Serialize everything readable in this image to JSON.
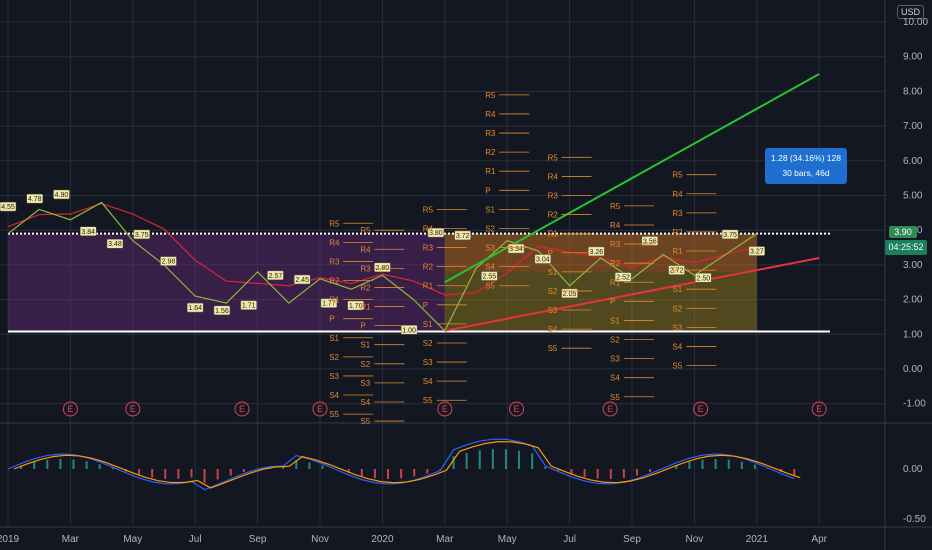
{
  "currency_label": "USD",
  "measure": {
    "line1": "1.28 (34.16%) 128",
    "line2": "30 bars, 46d"
  },
  "price_tag": "3.90",
  "time_tag": "04:25:52",
  "chart_data": {
    "type": "line",
    "main_axis": {
      "ylim": [
        -1.5,
        10.4
      ],
      "ticks": [
        "10.00",
        "9.00",
        "8.00",
        "7.00",
        "6.00",
        "5.00",
        "4.00",
        "3.00",
        "2.00",
        "1.00",
        "0.00",
        "-1.00"
      ]
    },
    "osc_axis": {
      "ticks": [
        "0.00",
        "-0.50"
      ]
    },
    "x_ticks": [
      "2019",
      "Mar",
      "May",
      "Jul",
      "Sep",
      "Nov",
      "2020",
      "Mar",
      "May",
      "Jul",
      "Sep",
      "Nov",
      "2021",
      "Apr"
    ],
    "price_series": [
      {
        "x": "2019-01",
        "y": 3.9
      },
      {
        "x": "2019-02",
        "y": 4.6
      },
      {
        "x": "2019-03",
        "y": 4.3
      },
      {
        "x": "2019-04",
        "y": 4.8
      },
      {
        "x": "2019-05",
        "y": 3.7
      },
      {
        "x": "2019-06",
        "y": 3.0
      },
      {
        "x": "2019-07",
        "y": 2.1
      },
      {
        "x": "2019-08",
        "y": 1.9
      },
      {
        "x": "2019-09",
        "y": 2.8
      },
      {
        "x": "2019-10",
        "y": 1.9
      },
      {
        "x": "2019-11",
        "y": 2.6
      },
      {
        "x": "2019-12",
        "y": 2.3
      },
      {
        "x": "2020-01",
        "y": 2.7
      },
      {
        "x": "2020-02",
        "y": 2.0
      },
      {
        "x": "2020-03",
        "y": 1.1
      },
      {
        "x": "2020-04",
        "y": 2.9
      },
      {
        "x": "2020-05",
        "y": 3.7
      },
      {
        "x": "2020-06",
        "y": 3.4
      },
      {
        "x": "2020-07",
        "y": 2.4
      },
      {
        "x": "2020-08",
        "y": 3.2
      },
      {
        "x": "2020-09",
        "y": 2.6
      },
      {
        "x": "2020-10",
        "y": 3.3
      },
      {
        "x": "2020-11",
        "y": 2.7
      },
      {
        "x": "2020-12",
        "y": 3.3
      },
      {
        "x": "2021-01",
        "y": 3.9
      }
    ],
    "horizontal_lines": [
      3.9,
      1.08
    ],
    "trend_lines": [
      {
        "color": "#29c22f",
        "from": {
          "x": "2020-03",
          "y": 2.5
        },
        "to": {
          "x": "2021-03",
          "y": 8.5
        }
      },
      {
        "color": "#e8333a",
        "from": {
          "x": "2020-03",
          "y": 1.1
        },
        "to": {
          "x": "2021-03",
          "y": 3.2
        }
      }
    ],
    "peak_labels": [
      "4.55",
      "4.78",
      "4.90",
      "3.84",
      "3.48",
      "3.75",
      "2.98",
      "1.64",
      "1.56",
      "1.71",
      "2.57",
      "2.45",
      "1.77",
      "1.70",
      "2.80",
      "1.00",
      "3.80",
      "3.72",
      "2.55",
      "3.34",
      "3.04",
      "2.05",
      "3.26",
      "2.52",
      "3.56",
      "2.72",
      "2.50",
      "3.75",
      "3.27"
    ],
    "pivot_labels": [
      "R5",
      "R4",
      "R3",
      "R2",
      "R1",
      "P",
      "S1",
      "S2",
      "S3",
      "S4",
      "S5"
    ],
    "earnings_label": "E"
  }
}
